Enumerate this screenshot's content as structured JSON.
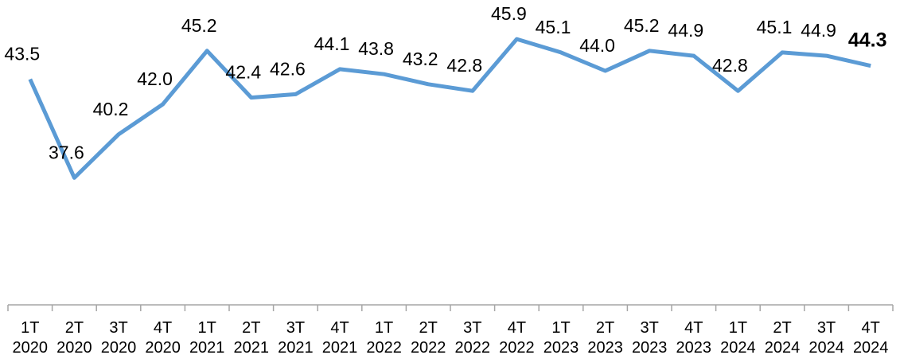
{
  "chart_data": {
    "type": "line",
    "categories": [
      "1T 2020",
      "2T 2020",
      "3T 2020",
      "4T 2020",
      "1T 2021",
      "2T 2021",
      "3T 2021",
      "4T 2021",
      "1T 2022",
      "2T 2022",
      "3T 2022",
      "4T 2022",
      "1T 2023",
      "2T 2023",
      "3T 2023",
      "4T 2023",
      "1T 2024",
      "2T 2024",
      "3T 2024",
      "4T 2024"
    ],
    "series": [
      {
        "name": null,
        "color": "#5b9bd5",
        "values": [
          43.5,
          37.6,
          40.2,
          42.0,
          45.2,
          42.4,
          42.6,
          44.1,
          43.8,
          43.2,
          42.8,
          45.9,
          45.1,
          44.0,
          45.2,
          44.9,
          42.8,
          45.1,
          44.9,
          44.3
        ],
        "value_labels": [
          "43.5",
          "37.6",
          "40.2",
          "42.0",
          "45.2",
          "42.4",
          "42.6",
          "44.1",
          "43.8",
          "43.2",
          "42.8",
          "45.9",
          "45.1",
          "44.0",
          "45.2",
          "44.9",
          "42.8",
          "45.1",
          "44.9",
          "44.3"
        ]
      }
    ],
    "ylim": [
      30,
      48
    ]
  }
}
